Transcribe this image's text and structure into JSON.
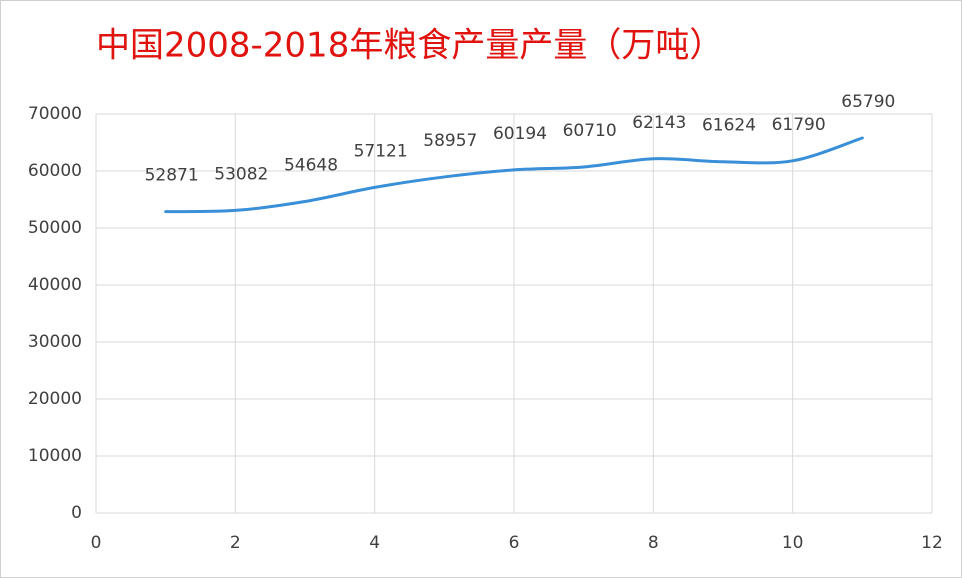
{
  "chart_data": {
    "type": "line",
    "title": "中国2008-2018年粮食产量产量（万吨）",
    "x": [
      1,
      2,
      3,
      4,
      5,
      6,
      7,
      8,
      9,
      10,
      11
    ],
    "values": [
      52871,
      53082,
      54648,
      57121,
      58957,
      60194,
      60710,
      62143,
      61624,
      61790,
      65790
    ],
    "color": "#3a8fd9",
    "xlim": [
      0,
      12
    ],
    "xticks": [
      0,
      2,
      4,
      6,
      8,
      10,
      12
    ],
    "ylim": [
      0,
      70000
    ],
    "yticks": [
      0,
      10000,
      20000,
      30000,
      40000,
      50000,
      60000,
      70000
    ],
    "grid": true
  }
}
